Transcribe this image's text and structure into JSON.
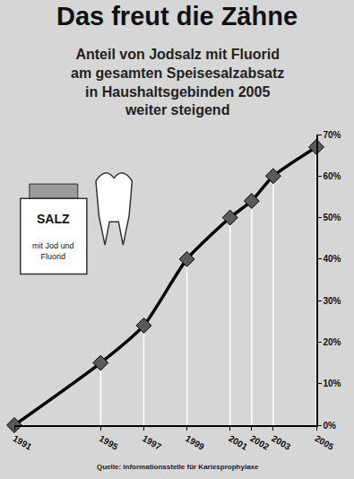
{
  "chart_data": {
    "type": "line",
    "title": "Das freut die Zähne",
    "subtitle": "Anteil von Jodsalz mit Fluorid am gesamten Speisesalzabsatz in Haushaltsgebinden 2005 weiter steigend",
    "x": [
      1991,
      1995,
      1997,
      1999,
      2001,
      2002,
      2003,
      2005
    ],
    "values": [
      0,
      15,
      24,
      40,
      50,
      54,
      60,
      67
    ],
    "color": "#000000",
    "marker": "diamond",
    "xlim": [
      1991,
      2005
    ],
    "xticks": [
      1991,
      1995,
      1997,
      1999,
      2001,
      2002,
      2003,
      2005
    ],
    "ylim": [
      0,
      70
    ],
    "yticks": [
      {
        "value": 0,
        "label": "0%"
      },
      {
        "value": 10,
        "label": "10%"
      },
      {
        "value": 20,
        "label": "20%"
      },
      {
        "value": 30,
        "label": "30%"
      },
      {
        "value": 40,
        "label": "40%"
      },
      {
        "value": 50,
        "label": "50%"
      },
      {
        "value": 60,
        "label": "60%"
      },
      {
        "value": 70,
        "label": "70%"
      }
    ],
    "grid": false,
    "annotations": [
      "SALZ",
      "mit Jod und Fluorid"
    ],
    "source": "Quelle: Informationsstelle für Kariesprophylaxe"
  }
}
